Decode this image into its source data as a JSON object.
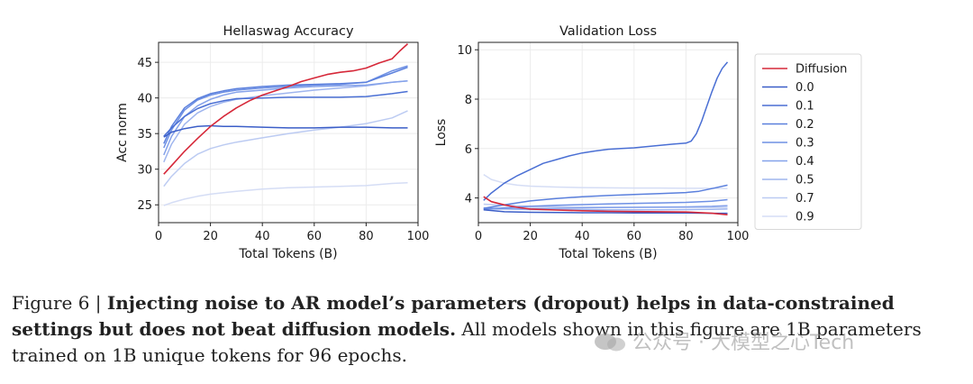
{
  "chart_data": [
    {
      "type": "line",
      "title": "Hellaswag Accuracy",
      "xlabel": "Total Tokens (B)",
      "ylabel": "Acc norm",
      "xlim": [
        0,
        100
      ],
      "ylim": [
        22.5,
        47.8
      ],
      "xticks": [
        0,
        20,
        40,
        60,
        80,
        100
      ],
      "yticks": [
        25,
        30,
        35,
        40,
        45
      ],
      "grid": true,
      "series": [
        {
          "name": "Diffusion",
          "color": "#d62839",
          "x": [
            2,
            5,
            10,
            15,
            20,
            25,
            30,
            35,
            40,
            45,
            50,
            55,
            60,
            65,
            70,
            75,
            80,
            85,
            90,
            93,
            96
          ],
          "y": [
            29.3,
            30.5,
            32.5,
            34.3,
            36.0,
            37.4,
            38.6,
            39.6,
            40.4,
            41.0,
            41.6,
            42.3,
            42.8,
            43.3,
            43.6,
            43.8,
            44.2,
            44.9,
            45.5,
            46.6,
            47.6
          ]
        },
        {
          "name": "0.0",
          "color": "#3b5ec8",
          "x": [
            2,
            5,
            10,
            15,
            20,
            25,
            30,
            40,
            50,
            60,
            70,
            80,
            90,
            96
          ],
          "y": [
            34.5,
            35.2,
            35.7,
            36.0,
            36.1,
            36.0,
            36.0,
            35.9,
            35.8,
            35.8,
            35.9,
            35.9,
            35.8,
            35.8
          ]
        },
        {
          "name": "0.1",
          "color": "#4a6fd4",
          "x": [
            2,
            5,
            10,
            15,
            20,
            25,
            30,
            40,
            50,
            60,
            70,
            80,
            90,
            96
          ],
          "y": [
            34.6,
            35.8,
            37.4,
            38.5,
            39.2,
            39.6,
            39.9,
            40.0,
            40.1,
            40.1,
            40.1,
            40.2,
            40.6,
            40.9
          ]
        },
        {
          "name": "0.2",
          "color": "#5b80dd",
          "x": [
            2,
            5,
            10,
            15,
            20,
            25,
            30,
            40,
            50,
            60,
            70,
            80,
            90,
            96
          ],
          "y": [
            33.6,
            36.0,
            38.6,
            39.9,
            40.6,
            41.0,
            41.3,
            41.6,
            41.8,
            41.9,
            42.0,
            42.2,
            43.5,
            44.3
          ]
        },
        {
          "name": "0.3",
          "color": "#6e90e4",
          "x": [
            2,
            5,
            10,
            15,
            20,
            25,
            30,
            40,
            50,
            60,
            70,
            80,
            90,
            96
          ],
          "y": [
            33.0,
            35.5,
            38.3,
            39.7,
            40.4,
            40.8,
            41.1,
            41.4,
            41.6,
            41.8,
            41.9,
            42.2,
            43.8,
            44.5
          ]
        },
        {
          "name": "0.4",
          "color": "#85a2ea",
          "x": [
            2,
            5,
            10,
            15,
            20,
            25,
            30,
            40,
            50,
            60,
            70,
            80,
            90,
            96
          ],
          "y": [
            32.0,
            34.6,
            37.4,
            38.9,
            39.8,
            40.4,
            40.8,
            41.1,
            41.4,
            41.6,
            41.7,
            41.8,
            42.2,
            42.4
          ]
        },
        {
          "name": "0.5",
          "color": "#9fb5ee",
          "x": [
            2,
            5,
            10,
            15,
            20,
            25,
            30,
            40,
            50,
            60,
            70,
            80,
            90,
            96
          ],
          "y": [
            31.0,
            33.5,
            36.3,
            37.9,
            38.8,
            39.4,
            39.8,
            40.3,
            40.7,
            41.1,
            41.4,
            41.7,
            42.2,
            42.4
          ]
        },
        {
          "name": "0.7",
          "color": "#bccbf2",
          "x": [
            2,
            5,
            10,
            15,
            20,
            25,
            30,
            40,
            50,
            60,
            70,
            80,
            90,
            96
          ],
          "y": [
            27.6,
            29.0,
            30.8,
            32.1,
            32.9,
            33.4,
            33.8,
            34.4,
            35.0,
            35.5,
            35.9,
            36.4,
            37.2,
            38.2
          ]
        },
        {
          "name": "0.9",
          "color": "#d5ddf5",
          "x": [
            2,
            5,
            10,
            15,
            20,
            25,
            30,
            40,
            50,
            60,
            70,
            80,
            90,
            96
          ],
          "y": [
            24.9,
            25.3,
            25.8,
            26.2,
            26.5,
            26.7,
            26.9,
            27.2,
            27.4,
            27.5,
            27.6,
            27.7,
            28.0,
            28.1
          ]
        }
      ]
    },
    {
      "type": "line",
      "title": "Validation Loss",
      "xlabel": "Total Tokens (B)",
      "ylabel": "Loss",
      "xlim": [
        0,
        100
      ],
      "ylim": [
        3.0,
        10.3
      ],
      "xticks": [
        0,
        20,
        40,
        60,
        80,
        100
      ],
      "yticks": [
        4,
        6,
        8,
        10
      ],
      "grid": true,
      "series": [
        {
          "name": "Diffusion",
          "color": "#d62839",
          "x": [
            2,
            5,
            10,
            15,
            20,
            30,
            40,
            50,
            60,
            70,
            80,
            90,
            96
          ],
          "y": [
            4.05,
            3.85,
            3.72,
            3.62,
            3.55,
            3.51,
            3.48,
            3.46,
            3.45,
            3.44,
            3.43,
            3.38,
            3.32
          ]
        },
        {
          "name": "0.0",
          "color": "#3b5ec8",
          "x": [
            2,
            10,
            20,
            30,
            40,
            50,
            60,
            70,
            80,
            90,
            96
          ],
          "y": [
            3.52,
            3.44,
            3.42,
            3.41,
            3.4,
            3.4,
            3.39,
            3.39,
            3.39,
            3.38,
            3.38
          ]
        },
        {
          "name": "0.1",
          "color": "#4a6fd4",
          "x": [
            2,
            5,
            10,
            15,
            20,
            25,
            30,
            35,
            40,
            45,
            50,
            55,
            60,
            65,
            70,
            75,
            80,
            82,
            84,
            86,
            88,
            90,
            92,
            94,
            96
          ],
          "y": [
            3.9,
            4.2,
            4.6,
            4.9,
            5.15,
            5.4,
            5.55,
            5.7,
            5.82,
            5.9,
            5.97,
            6.0,
            6.03,
            6.08,
            6.13,
            6.18,
            6.22,
            6.3,
            6.6,
            7.1,
            7.7,
            8.3,
            8.85,
            9.25,
            9.5
          ]
        },
        {
          "name": "0.2",
          "color": "#5b80dd",
          "x": [
            2,
            10,
            20,
            30,
            40,
            50,
            60,
            70,
            80,
            85,
            90,
            96
          ],
          "y": [
            3.58,
            3.72,
            3.88,
            3.98,
            4.05,
            4.1,
            4.14,
            4.18,
            4.22,
            4.27,
            4.38,
            4.52
          ]
        },
        {
          "name": "0.3",
          "color": "#6e90e4",
          "x": [
            2,
            10,
            20,
            30,
            40,
            50,
            60,
            70,
            80,
            90,
            96
          ],
          "y": [
            3.55,
            3.6,
            3.66,
            3.7,
            3.73,
            3.76,
            3.78,
            3.8,
            3.82,
            3.87,
            3.93
          ]
        },
        {
          "name": "0.4",
          "color": "#85a2ea",
          "x": [
            2,
            10,
            20,
            30,
            40,
            50,
            60,
            70,
            80,
            90,
            96
          ],
          "y": [
            3.55,
            3.56,
            3.57,
            3.58,
            3.59,
            3.61,
            3.62,
            3.63,
            3.64,
            3.66,
            3.69
          ]
        },
        {
          "name": "0.5",
          "color": "#9fb5ee",
          "x": [
            2,
            10,
            20,
            30,
            40,
            50,
            60,
            70,
            80,
            90,
            96
          ],
          "y": [
            3.6,
            3.56,
            3.53,
            3.52,
            3.52,
            3.52,
            3.52,
            3.52,
            3.53,
            3.54,
            3.55
          ]
        },
        {
          "name": "0.7",
          "color": "#bccbf2",
          "x": [
            2,
            10,
            20,
            30,
            40,
            50,
            60,
            70,
            80,
            90,
            96
          ],
          "y": [
            3.75,
            3.7,
            3.66,
            3.64,
            3.63,
            3.62,
            3.62,
            3.62,
            3.62,
            3.62,
            3.62
          ]
        },
        {
          "name": "0.9",
          "color": "#d5ddf5",
          "x": [
            2,
            5,
            10,
            15,
            20,
            30,
            40,
            50,
            60,
            70,
            80,
            90,
            96
          ],
          "y": [
            4.95,
            4.75,
            4.6,
            4.52,
            4.48,
            4.44,
            4.42,
            4.41,
            4.4,
            4.4,
            4.39,
            4.39,
            4.38
          ]
        }
      ]
    }
  ],
  "legend": {
    "placement": "right",
    "entries": [
      {
        "label": "Diffusion",
        "color": "#d62839"
      },
      {
        "label": "0.0",
        "color": "#3b5ec8"
      },
      {
        "label": "0.1",
        "color": "#4a6fd4"
      },
      {
        "label": "0.2",
        "color": "#5b80dd"
      },
      {
        "label": "0.3",
        "color": "#6e90e4"
      },
      {
        "label": "0.4",
        "color": "#85a2ea"
      },
      {
        "label": "0.5",
        "color": "#9fb5ee"
      },
      {
        "label": "0.7",
        "color": "#bccbf2"
      },
      {
        "label": "0.9",
        "color": "#d5ddf5"
      }
    ]
  },
  "caption": {
    "prefix": "Figure 6 | ",
    "bold": "Injecting noise to AR model’s parameters (dropout) helps in data-constrained settings but does not beat diffusion models.",
    "rest": " All models shown in this figure are 1B parameters trained on 1B unique tokens for 96 epochs."
  },
  "watermark": {
    "text": "公众号 · 大模型之心Tech"
  }
}
